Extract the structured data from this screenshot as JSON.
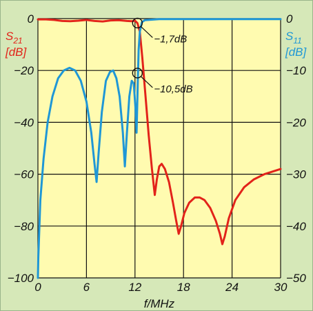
{
  "chart_data": {
    "type": "line",
    "colors": {
      "background": "#d6e8b8",
      "grid": "#111111",
      "s21": "#e2231a",
      "s11": "#1f97d6"
    },
    "x_axis": {
      "label": "f/MHz",
      "range": [
        0,
        30
      ],
      "ticks": [
        "0",
        "6",
        "12",
        "18",
        "24",
        "30"
      ]
    },
    "y_left": {
      "label_main": "S",
      "label_sub": "21",
      "unit": "[dB]",
      "range": [
        -100,
        0
      ],
      "ticks": [
        "0",
        "−20",
        "−40",
        "−60",
        "−80",
        "−100"
      ]
    },
    "y_right": {
      "label_main": "S",
      "label_sub": "11",
      "unit": "[dB]",
      "range": [
        -50,
        0
      ],
      "ticks": [
        "0",
        "−10",
        "−20",
        "−30",
        "−40",
        "−50"
      ]
    },
    "grid": true,
    "annotations": [
      {
        "text": "−1,7dB",
        "x": 12.3,
        "axis": "left",
        "y": -1.7
      },
      {
        "text": "−10,5dB",
        "x": 12.3,
        "axis": "right",
        "y": -10.5
      }
    ],
    "series": [
      {
        "key": "s21",
        "axis": "left",
        "points": [
          [
            0,
            -0.3
          ],
          [
            1,
            -0.3
          ],
          [
            2,
            -0.5
          ],
          [
            3,
            -0.9
          ],
          [
            4,
            -1.0
          ],
          [
            5,
            -0.8
          ],
          [
            6,
            -0.5
          ],
          [
            7,
            -0.9
          ],
          [
            8,
            -1.1
          ],
          [
            9,
            -0.7
          ],
          [
            10,
            -0.6
          ],
          [
            11,
            -0.9
          ],
          [
            11.6,
            -1.0
          ],
          [
            12.0,
            -0.8
          ],
          [
            12.3,
            -1.7
          ],
          [
            12.6,
            -5
          ],
          [
            12.9,
            -15
          ],
          [
            13.3,
            -30
          ],
          [
            13.7,
            -45
          ],
          [
            14.1,
            -58
          ],
          [
            14.45,
            -68
          ],
          [
            14.7,
            -62
          ],
          [
            15.0,
            -57
          ],
          [
            15.3,
            -56
          ],
          [
            15.7,
            -58
          ],
          [
            16.2,
            -63
          ],
          [
            16.7,
            -71
          ],
          [
            17.1,
            -78
          ],
          [
            17.4,
            -83
          ],
          [
            17.7,
            -80
          ],
          [
            18.1,
            -75
          ],
          [
            18.7,
            -71
          ],
          [
            19.4,
            -69
          ],
          [
            20.0,
            -69
          ],
          [
            20.6,
            -70
          ],
          [
            21.3,
            -73
          ],
          [
            22.0,
            -78
          ],
          [
            22.5,
            -83
          ],
          [
            22.8,
            -87
          ],
          [
            23.1,
            -84
          ],
          [
            23.6,
            -77
          ],
          [
            24.4,
            -70
          ],
          [
            25.5,
            -65
          ],
          [
            26.7,
            -62
          ],
          [
            28,
            -60
          ],
          [
            29,
            -59
          ],
          [
            30,
            -58
          ]
        ]
      },
      {
        "key": "s11",
        "axis": "right",
        "points": [
          [
            0,
            -50
          ],
          [
            0.05,
            -46
          ],
          [
            0.3,
            -35
          ],
          [
            0.7,
            -27
          ],
          [
            1.2,
            -20
          ],
          [
            1.8,
            -15
          ],
          [
            2.5,
            -11.5
          ],
          [
            3.2,
            -10
          ],
          [
            3.9,
            -9.5
          ],
          [
            4.6,
            -10
          ],
          [
            5.3,
            -12
          ],
          [
            6.0,
            -16
          ],
          [
            6.6,
            -22
          ],
          [
            7.0,
            -28
          ],
          [
            7.25,
            -31.5
          ],
          [
            7.5,
            -26
          ],
          [
            7.9,
            -18
          ],
          [
            8.4,
            -12
          ],
          [
            8.9,
            -10.3
          ],
          [
            9.3,
            -10
          ],
          [
            9.7,
            -11.5
          ],
          [
            10.1,
            -15
          ],
          [
            10.5,
            -22
          ],
          [
            10.75,
            -28.5
          ],
          [
            11.0,
            -22
          ],
          [
            11.3,
            -15
          ],
          [
            11.6,
            -12
          ],
          [
            11.85,
            -12.5
          ],
          [
            12.05,
            -17
          ],
          [
            12.2,
            -22
          ],
          [
            12.35,
            -12
          ],
          [
            12.45,
            -6
          ],
          [
            12.6,
            -2.5
          ],
          [
            12.85,
            -0.7
          ],
          [
            13.2,
            -0.3
          ],
          [
            15,
            -0.1
          ],
          [
            20,
            -0.1
          ],
          [
            25,
            -0.1
          ],
          [
            30,
            -0.1
          ]
        ]
      }
    ]
  }
}
